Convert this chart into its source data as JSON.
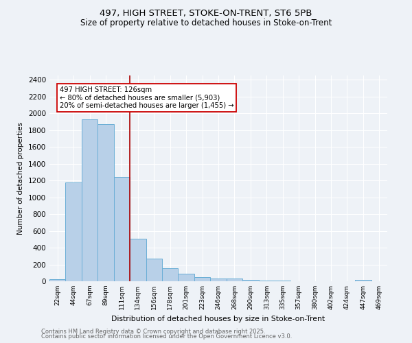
{
  "title1": "497, HIGH STREET, STOKE-ON-TRENT, ST6 5PB",
  "title2": "Size of property relative to detached houses in Stoke-on-Trent",
  "xlabel": "Distribution of detached houses by size in Stoke-on-Trent",
  "ylabel": "Number of detached properties",
  "categories": [
    "22sqm",
    "44sqm",
    "67sqm",
    "89sqm",
    "111sqm",
    "134sqm",
    "156sqm",
    "178sqm",
    "201sqm",
    "223sqm",
    "246sqm",
    "268sqm",
    "290sqm",
    "313sqm",
    "335sqm",
    "357sqm",
    "380sqm",
    "402sqm",
    "424sqm",
    "447sqm",
    "469sqm"
  ],
  "values": [
    22,
    1175,
    1930,
    1870,
    1240,
    510,
    270,
    155,
    90,
    50,
    35,
    30,
    15,
    8,
    5,
    3,
    2,
    1,
    1,
    15,
    0
  ],
  "bar_color": "#b8d0e8",
  "bar_edge_color": "#6aaed6",
  "vline_x": 4.5,
  "vline_color": "#aa0000",
  "annotation_title": "497 HIGH STREET: 126sqm",
  "annotation_line1": "← 80% of detached houses are smaller (5,903)",
  "annotation_line2": "20% of semi-detached houses are larger (1,455) →",
  "annotation_box_color": "white",
  "annotation_box_edge_color": "#cc0000",
  "ylim": [
    0,
    2450
  ],
  "yticks": [
    0,
    200,
    400,
    600,
    800,
    1000,
    1200,
    1400,
    1600,
    1800,
    2000,
    2200,
    2400
  ],
  "footer1": "Contains HM Land Registry data © Crown copyright and database right 2025.",
  "footer2": "Contains public sector information licensed under the Open Government Licence v3.0.",
  "bg_color": "#eef2f7",
  "grid_color": "#ffffff"
}
